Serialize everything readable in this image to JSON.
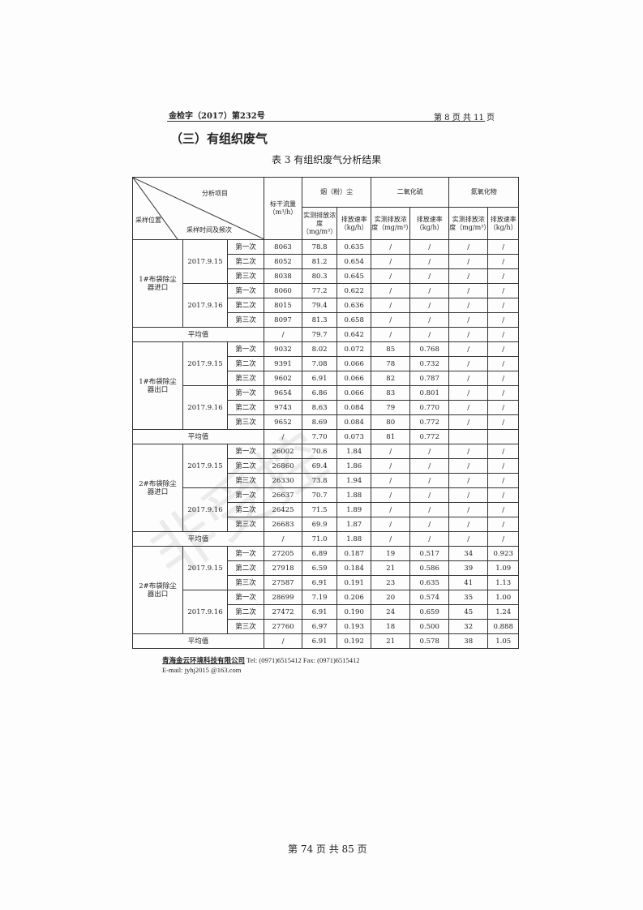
{
  "header": {
    "doc_no": "金检字（2017）第232号",
    "page_info": "第 8 页 共 11 页"
  },
  "section_title": "（三）有组织废气",
  "table_caption": "表 3 有组织废气分析结果",
  "table_header": {
    "analysis_item": "分析项目",
    "location": "采样位置",
    "time_freq": "采样时间及频次",
    "flow": "标干流量（m³/h）",
    "dust": "烟（粉）尘",
    "so2": "二氧化硫",
    "nox": "氮氧化物",
    "conc": "实测排放浓度（mg/m³）",
    "rate": "排放速率（kg/h）"
  },
  "groups": [
    {
      "location": "1#布袋除尘器进口",
      "dates": [
        {
          "date": "2017.9.15",
          "rows": [
            [
              "第一次",
              "8063",
              "78.8",
              "0.635",
              "/",
              "/",
              "/",
              "/"
            ],
            [
              "第二次",
              "8052",
              "81.2",
              "0.654",
              "/",
              "/",
              "/",
              "/"
            ],
            [
              "第三次",
              "8038",
              "80.3",
              "0.645",
              "/",
              "/",
              "/",
              "/"
            ]
          ]
        },
        {
          "date": "2017.9.16",
          "rows": [
            [
              "第一次",
              "8060",
              "77.2",
              "0.622",
              "/",
              "/",
              "/",
              "/"
            ],
            [
              "第二次",
              "8015",
              "79.4",
              "0.636",
              "/",
              "/",
              "/",
              "/"
            ],
            [
              "第三次",
              "8097",
              "81.3",
              "0.658",
              "/",
              "/",
              "/",
              "/"
            ]
          ]
        }
      ],
      "avg": [
        "平均值",
        "/",
        "79.7",
        "0.642",
        "/",
        "/",
        "/",
        "/"
      ]
    },
    {
      "location": "1#布袋除尘器出口",
      "dates": [
        {
          "date": "2017.9.15",
          "rows": [
            [
              "第一次",
              "9032",
              "8.02",
              "0.072",
              "85",
              "0.768",
              "/",
              "/"
            ],
            [
              "第二次",
              "9391",
              "7.08",
              "0.066",
              "78",
              "0.732",
              "/",
              "/"
            ],
            [
              "第三次",
              "9602",
              "6.91",
              "0.066",
              "82",
              "0.787",
              "/",
              "/"
            ]
          ]
        },
        {
          "date": "2017.9.16",
          "rows": [
            [
              "第一次",
              "9654",
              "6.86",
              "0.066",
              "83",
              "0.801",
              "/",
              "/"
            ],
            [
              "第二次",
              "9743",
              "8.63",
              "0.084",
              "79",
              "0.770",
              "/",
              "/"
            ],
            [
              "第三次",
              "9652",
              "8.69",
              "0.084",
              "80",
              "0.772",
              "/",
              "/"
            ]
          ]
        }
      ],
      "avg": [
        "平均值",
        "/",
        "7.70",
        "0.073",
        "81",
        "0.772",
        "",
        ""
      ]
    },
    {
      "location": "2#布袋除尘器进口",
      "dates": [
        {
          "date": "2017.9.15",
          "rows": [
            [
              "第一次",
              "26002",
              "70.6",
              "1.84",
              "/",
              "/",
              "/",
              "/"
            ],
            [
              "第二次",
              "26860",
              "69.4",
              "1.86",
              "/",
              "/",
              "/",
              "/"
            ],
            [
              "第三次",
              "26330",
              "73.8",
              "1.94",
              "/",
              "/",
              "/",
              "/"
            ]
          ]
        },
        {
          "date": "2017.9.16",
          "rows": [
            [
              "第一次",
              "26637",
              "70.7",
              "1.88",
              "/",
              "/",
              "/",
              "/"
            ],
            [
              "第二次",
              "26425",
              "71.5",
              "1.89",
              "/",
              "/",
              "/",
              "/"
            ],
            [
              "第三次",
              "26683",
              "69.9",
              "1.87",
              "/",
              "/",
              "/",
              "/"
            ]
          ]
        }
      ],
      "avg": [
        "平均值",
        "/",
        "71.0",
        "1.88",
        "/",
        "/",
        "/",
        "/"
      ]
    },
    {
      "location": "2#布袋除尘器出口",
      "dates": [
        {
          "date": "2017.9.15",
          "rows": [
            [
              "第一次",
              "27205",
              "6.89",
              "0.187",
              "19",
              "0.517",
              "34",
              "0.923"
            ],
            [
              "第二次",
              "27918",
              "6.59",
              "0.184",
              "21",
              "0.586",
              "39",
              "1.09"
            ],
            [
              "第三次",
              "27587",
              "6.91",
              "0.191",
              "23",
              "0.635",
              "41",
              "1.13"
            ]
          ]
        },
        {
          "date": "2017.9.16",
          "rows": [
            [
              "第一次",
              "28699",
              "7.19",
              "0.206",
              "20",
              "0.574",
              "35",
              "1.00"
            ],
            [
              "第二次",
              "27472",
              "6.91",
              "0.190",
              "24",
              "0.659",
              "45",
              "1.24"
            ],
            [
              "第三次",
              "27760",
              "6.97",
              "0.193",
              "18",
              "0.500",
              "32",
              "0.888"
            ]
          ]
        }
      ],
      "avg": [
        "平均值",
        "/",
        "6.91",
        "0.192",
        "21",
        "0.578",
        "38",
        "1.05"
      ]
    }
  ],
  "footer": {
    "company": "青海金云环境科技有限公司",
    "contact": " Tel:  (0971)6515412   Fax:  (0971)6515412",
    "email": "E-mail:  jyhj2015 @163.com"
  },
  "watermark": "非受控",
  "page_number": "第 74 页 共 85 页"
}
